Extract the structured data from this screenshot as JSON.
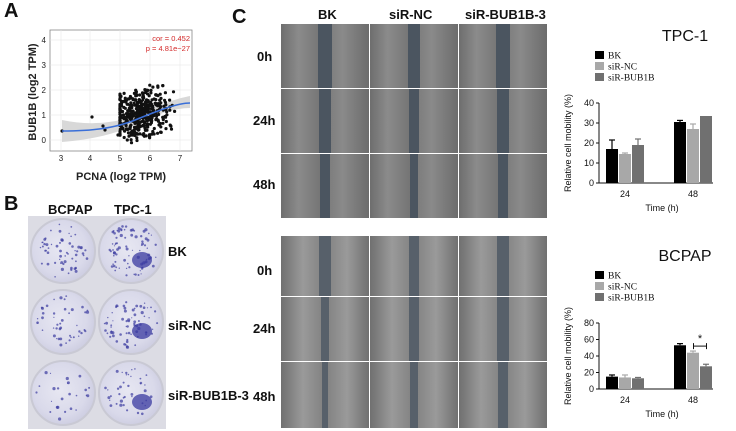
{
  "panels": {
    "a": "A",
    "b": "B",
    "c": "C"
  },
  "panelA": {
    "xlabel": "PCNA (log2 TPM)",
    "ylabel": "BUB1B (log2 TPM)",
    "cor": "cor = 0.452",
    "p": "p = 4.81e−27",
    "xticks": [
      "3",
      "4",
      "5",
      "6",
      "7"
    ],
    "yticks": [
      "0",
      "1",
      "2",
      "3",
      "4"
    ],
    "accent": "#d42a2a",
    "fit_color": "#3a6fd8"
  },
  "panelB": {
    "columns": [
      "BCPAP",
      "TPC-1"
    ],
    "rows": [
      "BK",
      "siR-NC",
      "siR-BUB1B-3"
    ],
    "stain_color": "#3a3aa0"
  },
  "panelC": {
    "columns": [
      "BK",
      "siR-NC",
      "siR-BUB1B-3"
    ],
    "times": [
      "0h",
      "24h",
      "48h"
    ]
  },
  "chart_data": [
    {
      "type": "bar",
      "title": "TPC-1",
      "categories": [
        "24",
        "48"
      ],
      "series": [
        {
          "name": "BK",
          "color": "#000000",
          "values": [
            17,
            30.5
          ],
          "errors": [
            4.5,
            0.8
          ]
        },
        {
          "name": "siR-NC",
          "color": "#a8a8a8",
          "values": [
            14.5,
            27
          ],
          "errors": [
            0.5,
            2.5
          ]
        },
        {
          "name": "siR-BUB1B",
          "color": "#707070",
          "values": [
            19,
            33.5
          ],
          "errors": [
            3,
            0
          ]
        }
      ],
      "xlabel": "Time (h)",
      "ylabel": "Relative cell mobility (%)",
      "ylim": [
        0,
        40
      ],
      "yticks": [
        "0",
        "10",
        "20",
        "30",
        "40"
      ],
      "legend": "top-left"
    },
    {
      "type": "bar",
      "title": "BCPAP",
      "categories": [
        "24",
        "48"
      ],
      "series": [
        {
          "name": "BK",
          "color": "#000000",
          "values": [
            15,
            53
          ],
          "errors": [
            2,
            2
          ]
        },
        {
          "name": "siR-NC",
          "color": "#a8a8a8",
          "values": [
            14,
            44
          ],
          "errors": [
            3,
            2
          ]
        },
        {
          "name": "siR-BUB1B",
          "color": "#707070",
          "values": [
            13,
            27.5
          ],
          "errors": [
            1,
            2.5
          ]
        }
      ],
      "xlabel": "Time (h)",
      "ylabel": "Relative cell mobility (%)",
      "ylim": [
        0,
        80
      ],
      "yticks": [
        "0",
        "20",
        "40",
        "60",
        "80"
      ],
      "legend": "top-left",
      "annotation": "*"
    }
  ]
}
